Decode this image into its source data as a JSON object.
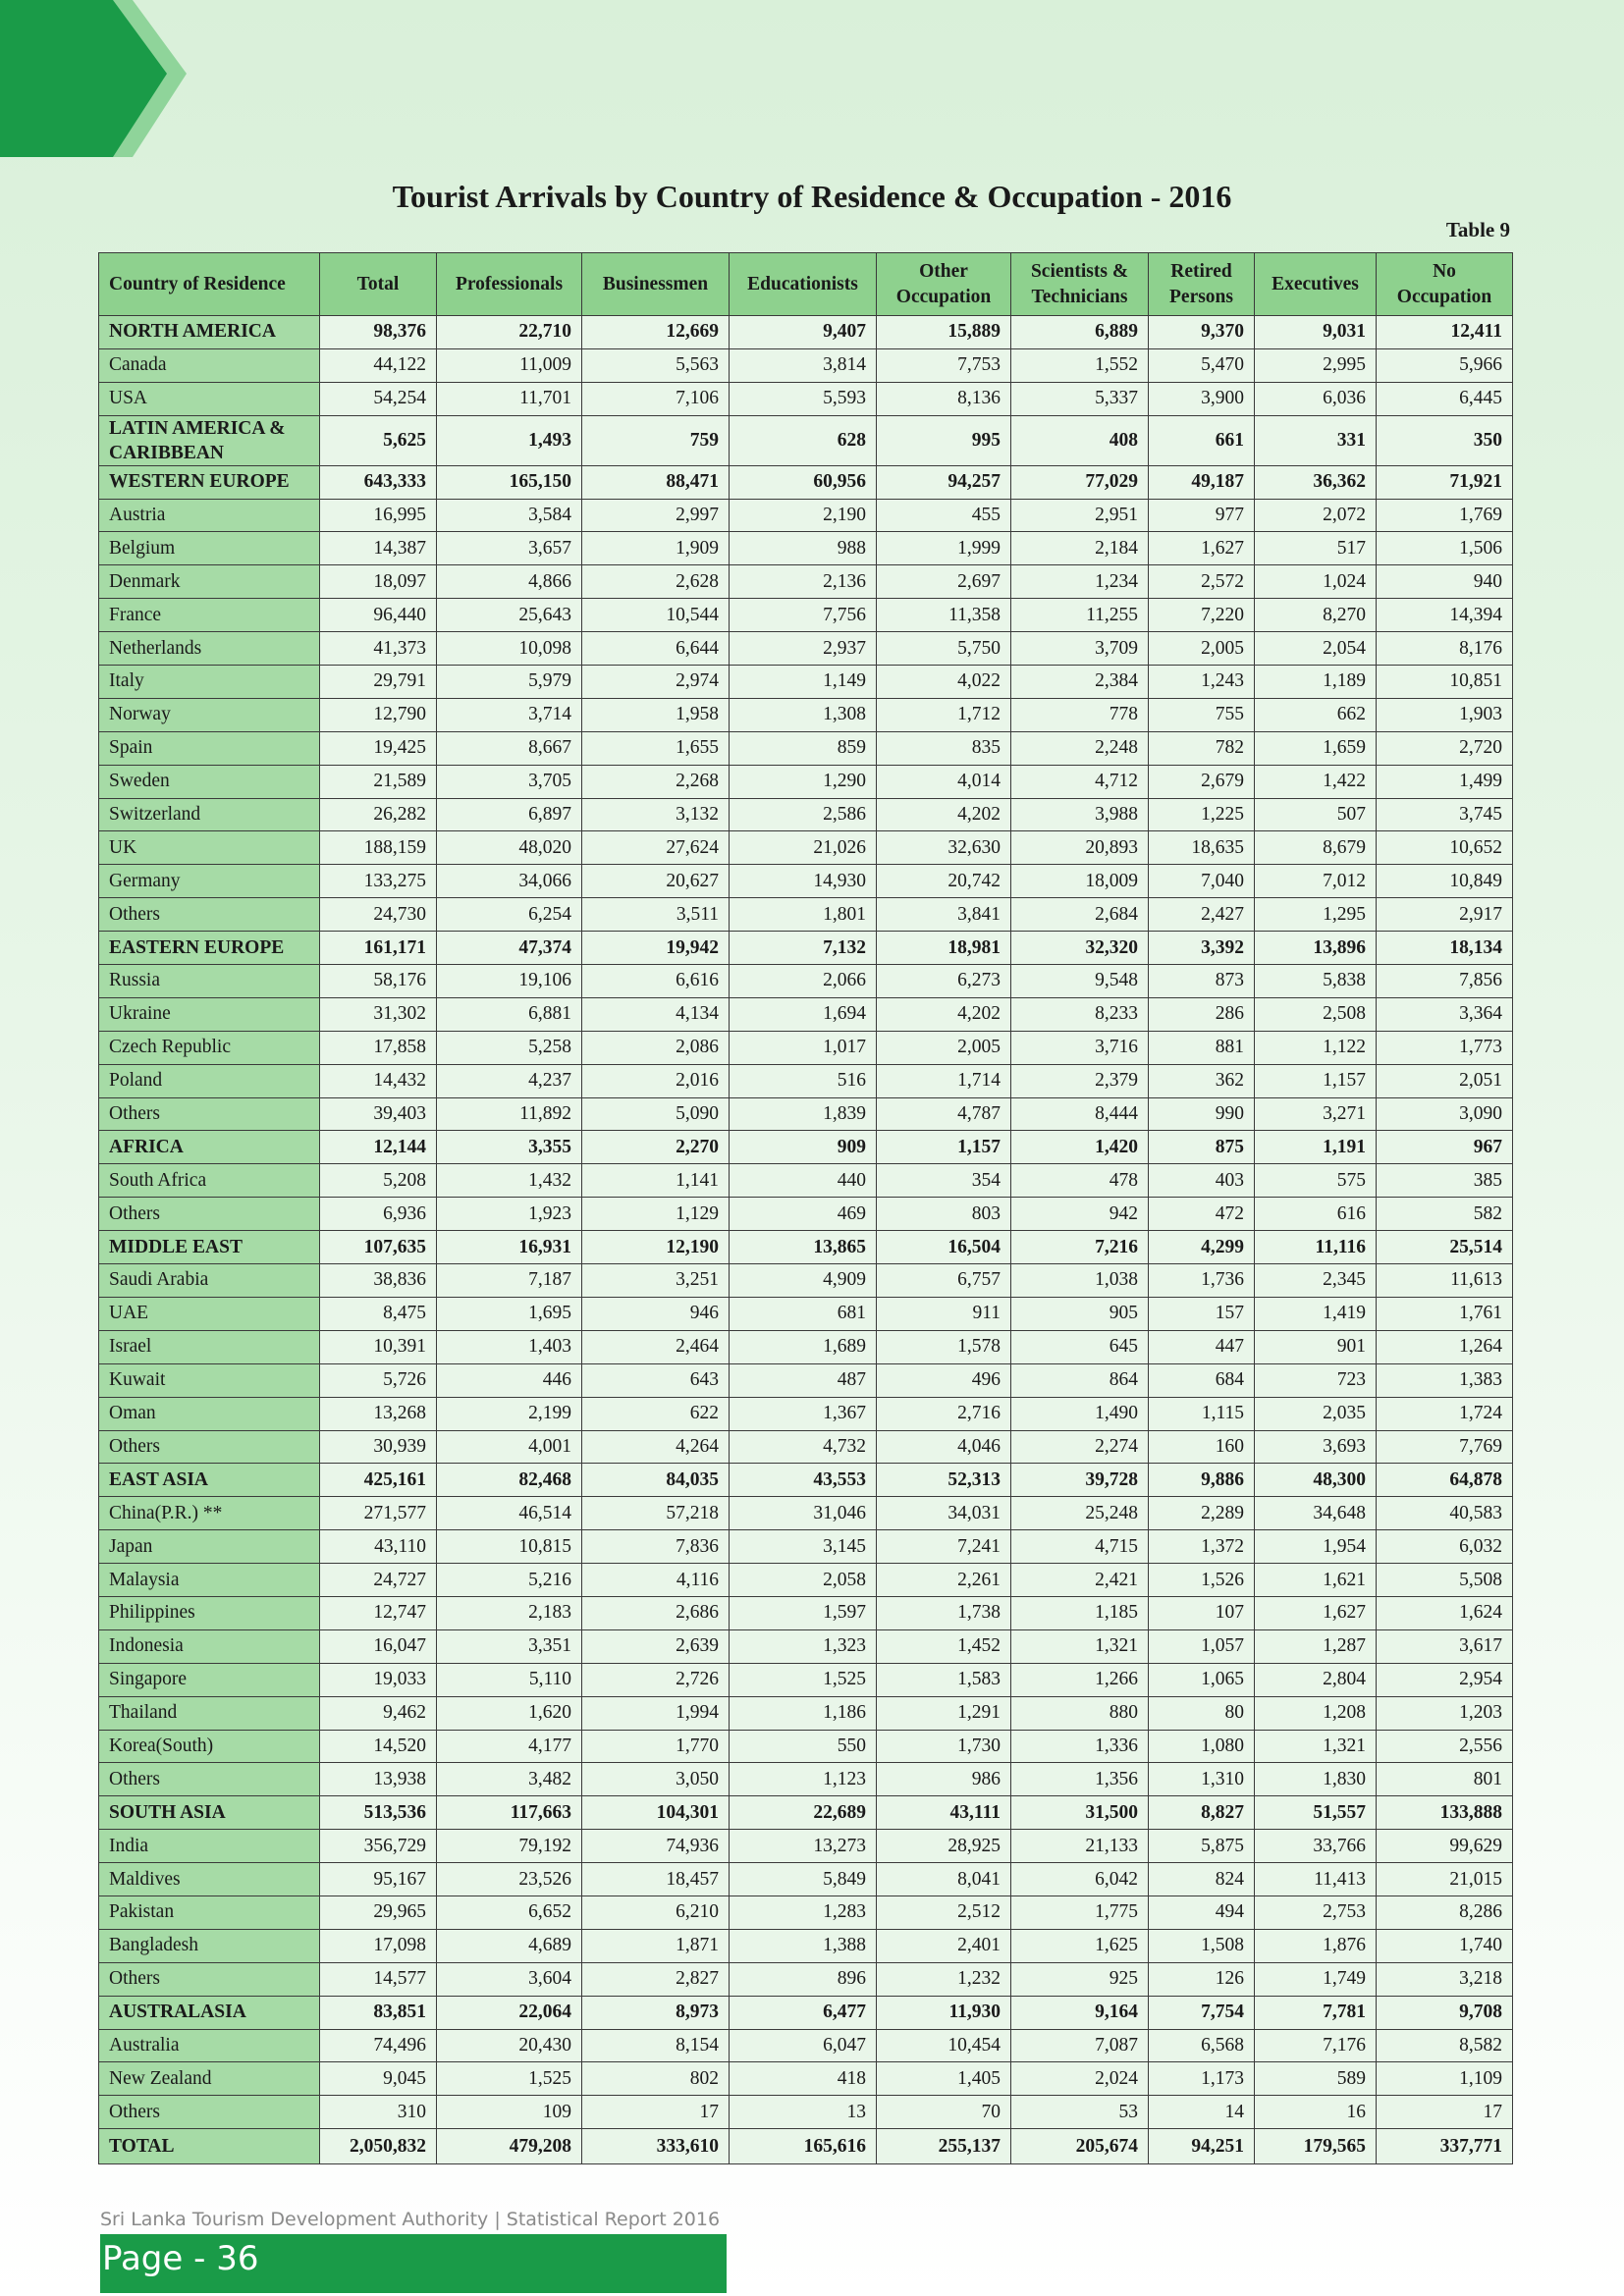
{
  "header": {
    "title": "Tourist Arrivals by Country of Residence & Occupation - 2016",
    "table_no": "Table 9"
  },
  "columns": [
    "Country of Residence",
    "Total",
    "Professionals",
    "Businessmen",
    "Educationists",
    "Other Occupation",
    "Scientists & Technicians",
    "Retired Persons",
    "Executives",
    "No Occupation"
  ],
  "rows": [
    {
      "region": true,
      "cells": [
        "NORTH AMERICA",
        "98,376",
        "22,710",
        "12,669",
        "9,407",
        "15,889",
        "6,889",
        "9,370",
        "9,031",
        "12,411"
      ]
    },
    {
      "region": false,
      "cells": [
        "Canada",
        "44,122",
        "11,009",
        "5,563",
        "3,814",
        "7,753",
        "1,552",
        "5,470",
        "2,995",
        "5,966"
      ]
    },
    {
      "region": false,
      "cells": [
        "USA",
        "54,254",
        "11,701",
        "7,106",
        "5,593",
        "8,136",
        "5,337",
        "3,900",
        "6,036",
        "6,445"
      ]
    },
    {
      "region": true,
      "tall": true,
      "cells": [
        "LATIN AMERICA & CARIBBEAN",
        "5,625",
        "1,493",
        "759",
        "628",
        "995",
        "408",
        "661",
        "331",
        "350"
      ]
    },
    {
      "region": true,
      "cells": [
        "WESTERN EUROPE",
        "643,333",
        "165,150",
        "88,471",
        "60,956",
        "94,257",
        "77,029",
        "49,187",
        "36,362",
        "71,921"
      ]
    },
    {
      "region": false,
      "cells": [
        "Austria",
        "16,995",
        "3,584",
        "2,997",
        "2,190",
        "455",
        "2,951",
        "977",
        "2,072",
        "1,769"
      ]
    },
    {
      "region": false,
      "cells": [
        "Belgium",
        "14,387",
        "3,657",
        "1,909",
        "988",
        "1,999",
        "2,184",
        "1,627",
        "517",
        "1,506"
      ]
    },
    {
      "region": false,
      "cells": [
        "Denmark",
        "18,097",
        "4,866",
        "2,628",
        "2,136",
        "2,697",
        "1,234",
        "2,572",
        "1,024",
        "940"
      ]
    },
    {
      "region": false,
      "cells": [
        "France",
        "96,440",
        "25,643",
        "10,544",
        "7,756",
        "11,358",
        "11,255",
        "7,220",
        "8,270",
        "14,394"
      ]
    },
    {
      "region": false,
      "cells": [
        "Netherlands",
        "41,373",
        "10,098",
        "6,644",
        "2,937",
        "5,750",
        "3,709",
        "2,005",
        "2,054",
        "8,176"
      ]
    },
    {
      "region": false,
      "cells": [
        "Italy",
        "29,791",
        "5,979",
        "2,974",
        "1,149",
        "4,022",
        "2,384",
        "1,243",
        "1,189",
        "10,851"
      ]
    },
    {
      "region": false,
      "cells": [
        "Norway",
        "12,790",
        "3,714",
        "1,958",
        "1,308",
        "1,712",
        "778",
        "755",
        "662",
        "1,903"
      ]
    },
    {
      "region": false,
      "cells": [
        "Spain",
        "19,425",
        "8,667",
        "1,655",
        "859",
        "835",
        "2,248",
        "782",
        "1,659",
        "2,720"
      ]
    },
    {
      "region": false,
      "cells": [
        "Sweden",
        "21,589",
        "3,705",
        "2,268",
        "1,290",
        "4,014",
        "4,712",
        "2,679",
        "1,422",
        "1,499"
      ]
    },
    {
      "region": false,
      "cells": [
        "Switzerland",
        "26,282",
        "6,897",
        "3,132",
        "2,586",
        "4,202",
        "3,988",
        "1,225",
        "507",
        "3,745"
      ]
    },
    {
      "region": false,
      "cells": [
        "UK",
        "188,159",
        "48,020",
        "27,624",
        "21,026",
        "32,630",
        "20,893",
        "18,635",
        "8,679",
        "10,652"
      ]
    },
    {
      "region": false,
      "cells": [
        "Germany",
        "133,275",
        "34,066",
        "20,627",
        "14,930",
        "20,742",
        "18,009",
        "7,040",
        "7,012",
        "10,849"
      ]
    },
    {
      "region": false,
      "cells": [
        "Others",
        "24,730",
        "6,254",
        "3,511",
        "1,801",
        "3,841",
        "2,684",
        "2,427",
        "1,295",
        "2,917"
      ]
    },
    {
      "region": true,
      "cells": [
        "EASTERN EUROPE",
        "161,171",
        "47,374",
        "19,942",
        "7,132",
        "18,981",
        "32,320",
        "3,392",
        "13,896",
        "18,134"
      ]
    },
    {
      "region": false,
      "cells": [
        "Russia",
        "58,176",
        "19,106",
        "6,616",
        "2,066",
        "6,273",
        "9,548",
        "873",
        "5,838",
        "7,856"
      ]
    },
    {
      "region": false,
      "cells": [
        "Ukraine",
        "31,302",
        "6,881",
        "4,134",
        "1,694",
        "4,202",
        "8,233",
        "286",
        "2,508",
        "3,364"
      ]
    },
    {
      "region": false,
      "cells": [
        "Czech Republic",
        "17,858",
        "5,258",
        "2,086",
        "1,017",
        "2,005",
        "3,716",
        "881",
        "1,122",
        "1,773"
      ]
    },
    {
      "region": false,
      "cells": [
        "Poland",
        "14,432",
        "4,237",
        "2,016",
        "516",
        "1,714",
        "2,379",
        "362",
        "1,157",
        "2,051"
      ]
    },
    {
      "region": false,
      "cells": [
        "Others",
        "39,403",
        "11,892",
        "5,090",
        "1,839",
        "4,787",
        "8,444",
        "990",
        "3,271",
        "3,090"
      ]
    },
    {
      "region": true,
      "cells": [
        "AFRICA",
        "12,144",
        "3,355",
        "2,270",
        "909",
        "1,157",
        "1,420",
        "875",
        "1,191",
        "967"
      ]
    },
    {
      "region": false,
      "cells": [
        "South Africa",
        "5,208",
        "1,432",
        "1,141",
        "440",
        "354",
        "478",
        "403",
        "575",
        "385"
      ]
    },
    {
      "region": false,
      "cells": [
        "Others",
        "6,936",
        "1,923",
        "1,129",
        "469",
        "803",
        "942",
        "472",
        "616",
        "582"
      ]
    },
    {
      "region": true,
      "cells": [
        "MIDDLE EAST",
        "107,635",
        "16,931",
        "12,190",
        "13,865",
        "16,504",
        "7,216",
        "4,299",
        "11,116",
        "25,514"
      ]
    },
    {
      "region": false,
      "cells": [
        "Saudi Arabia",
        "38,836",
        "7,187",
        "3,251",
        "4,909",
        "6,757",
        "1,038",
        "1,736",
        "2,345",
        "11,613"
      ]
    },
    {
      "region": false,
      "cells": [
        "UAE",
        "8,475",
        "1,695",
        "946",
        "681",
        "911",
        "905",
        "157",
        "1,419",
        "1,761"
      ]
    },
    {
      "region": false,
      "cells": [
        "Israel",
        "10,391",
        "1,403",
        "2,464",
        "1,689",
        "1,578",
        "645",
        "447",
        "901",
        "1,264"
      ]
    },
    {
      "region": false,
      "cells": [
        "Kuwait",
        "5,726",
        "446",
        "643",
        "487",
        "496",
        "864",
        "684",
        "723",
        "1,383"
      ]
    },
    {
      "region": false,
      "cells": [
        "Oman",
        "13,268",
        "2,199",
        "622",
        "1,367",
        "2,716",
        "1,490",
        "1,115",
        "2,035",
        "1,724"
      ]
    },
    {
      "region": false,
      "cells": [
        "Others",
        "30,939",
        "4,001",
        "4,264",
        "4,732",
        "4,046",
        "2,274",
        "160",
        "3,693",
        "7,769"
      ]
    },
    {
      "region": true,
      "cells": [
        "EAST ASIA",
        "425,161",
        "82,468",
        "84,035",
        "43,553",
        "52,313",
        "39,728",
        "9,886",
        "48,300",
        "64,878"
      ]
    },
    {
      "region": false,
      "cells": [
        "China(P.R.) **",
        "271,577",
        "46,514",
        "57,218",
        "31,046",
        "34,031",
        "25,248",
        "2,289",
        "34,648",
        "40,583"
      ]
    },
    {
      "region": false,
      "cells": [
        "Japan",
        "43,110",
        "10,815",
        "7,836",
        "3,145",
        "7,241",
        "4,715",
        "1,372",
        "1,954",
        "6,032"
      ]
    },
    {
      "region": false,
      "cells": [
        "Malaysia",
        "24,727",
        "5,216",
        "4,116",
        "2,058",
        "2,261",
        "2,421",
        "1,526",
        "1,621",
        "5,508"
      ]
    },
    {
      "region": false,
      "cells": [
        "Philippines",
        "12,747",
        "2,183",
        "2,686",
        "1,597",
        "1,738",
        "1,185",
        "107",
        "1,627",
        "1,624"
      ]
    },
    {
      "region": false,
      "cells": [
        "Indonesia",
        "16,047",
        "3,351",
        "2,639",
        "1,323",
        "1,452",
        "1,321",
        "1,057",
        "1,287",
        "3,617"
      ]
    },
    {
      "region": false,
      "cells": [
        "Singapore",
        "19,033",
        "5,110",
        "2,726",
        "1,525",
        "1,583",
        "1,266",
        "1,065",
        "2,804",
        "2,954"
      ]
    },
    {
      "region": false,
      "cells": [
        "Thailand",
        "9,462",
        "1,620",
        "1,994",
        "1,186",
        "1,291",
        "880",
        "80",
        "1,208",
        "1,203"
      ]
    },
    {
      "region": false,
      "cells": [
        "Korea(South)",
        "14,520",
        "4,177",
        "1,770",
        "550",
        "1,730",
        "1,336",
        "1,080",
        "1,321",
        "2,556"
      ]
    },
    {
      "region": false,
      "cells": [
        "Others",
        "13,938",
        "3,482",
        "3,050",
        "1,123",
        "986",
        "1,356",
        "1,310",
        "1,830",
        "801"
      ]
    },
    {
      "region": true,
      "cells": [
        "SOUTH ASIA",
        "513,536",
        "117,663",
        "104,301",
        "22,689",
        "43,111",
        "31,500",
        "8,827",
        "51,557",
        "133,888"
      ]
    },
    {
      "region": false,
      "cells": [
        "India",
        "356,729",
        "79,192",
        "74,936",
        "13,273",
        "28,925",
        "21,133",
        "5,875",
        "33,766",
        "99,629"
      ]
    },
    {
      "region": false,
      "cells": [
        "Maldives",
        "95,167",
        "23,526",
        "18,457",
        "5,849",
        "8,041",
        "6,042",
        "824",
        "11,413",
        "21,015"
      ]
    },
    {
      "region": false,
      "cells": [
        "Pakistan",
        "29,965",
        "6,652",
        "6,210",
        "1,283",
        "2,512",
        "1,775",
        "494",
        "2,753",
        "8,286"
      ]
    },
    {
      "region": false,
      "cells": [
        "Bangladesh",
        "17,098",
        "4,689",
        "1,871",
        "1,388",
        "2,401",
        "1,625",
        "1,508",
        "1,876",
        "1,740"
      ]
    },
    {
      "region": false,
      "cells": [
        "Others",
        "14,577",
        "3,604",
        "2,827",
        "896",
        "1,232",
        "925",
        "126",
        "1,749",
        "3,218"
      ]
    },
    {
      "region": true,
      "cells": [
        "AUSTRALASIA",
        "83,851",
        "22,064",
        "8,973",
        "6,477",
        "11,930",
        "9,164",
        "7,754",
        "7,781",
        "9,708"
      ]
    },
    {
      "region": false,
      "cells": [
        "Australia",
        "74,496",
        "20,430",
        "8,154",
        "6,047",
        "10,454",
        "7,087",
        "6,568",
        "7,176",
        "8,582"
      ]
    },
    {
      "region": false,
      "cells": [
        "New Zealand",
        "9,045",
        "1,525",
        "802",
        "418",
        "1,405",
        "2,024",
        "1,173",
        "589",
        "1,109"
      ]
    },
    {
      "region": false,
      "cells": [
        "Others",
        "310",
        "109",
        "17",
        "13",
        "70",
        "53",
        "14",
        "16",
        "17"
      ]
    },
    {
      "region": true,
      "total": true,
      "cells": [
        "TOTAL",
        "2,050,832",
        "479,208",
        "333,610",
        "165,616",
        "255,137",
        "205,674",
        "94,251",
        "179,565",
        "337,771"
      ]
    }
  ],
  "footer": {
    "publisher": "Sri Lanka Tourism Development Authority  |  Statistical Report 2016",
    "page": "Page - 36"
  },
  "colors": {
    "brand_green": "#1a9b48",
    "header_green": "#8ed18e",
    "label_green": "#a6dba6"
  }
}
